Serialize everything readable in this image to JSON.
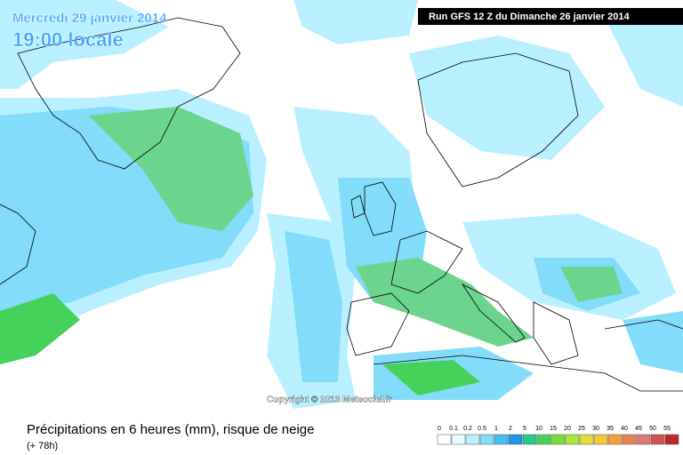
{
  "header": {
    "date": "Mercredi 29 janvier 2014",
    "time": "19:00 locale",
    "run": "Run GFS 12 Z du Dimanche 26 janvier 2014"
  },
  "copyright": "Copyright © 2013 Meteociel.fr",
  "footer": {
    "title": "Précipitations en 6 heures (mm), risque de neige",
    "lead": "(+ 78h)"
  },
  "legend": {
    "items": [
      {
        "value": 0,
        "color": "#ffffff"
      },
      {
        "value": 0.1,
        "color": "#e6fbff"
      },
      {
        "value": 0.2,
        "color": "#b9f0ff"
      },
      {
        "value": 0.5,
        "color": "#82dcfa"
      },
      {
        "value": 1,
        "color": "#46bef0"
      },
      {
        "value": 2,
        "color": "#1e96e6"
      },
      {
        "value": 5,
        "color": "#28c88c"
      },
      {
        "value": 10,
        "color": "#46d25a"
      },
      {
        "value": 15,
        "color": "#78dc3c"
      },
      {
        "value": 20,
        "color": "#aae63c"
      },
      {
        "value": 25,
        "color": "#dcdc3c"
      },
      {
        "value": 30,
        "color": "#f0c83c"
      },
      {
        "value": 35,
        "color": "#f0a03c"
      },
      {
        "value": 40,
        "color": "#e68250"
      },
      {
        "value": 45,
        "color": "#dc7878"
      },
      {
        "value": 50,
        "color": "#d25050"
      },
      {
        "value": 55,
        "color": "#be2828"
      }
    ]
  }
}
